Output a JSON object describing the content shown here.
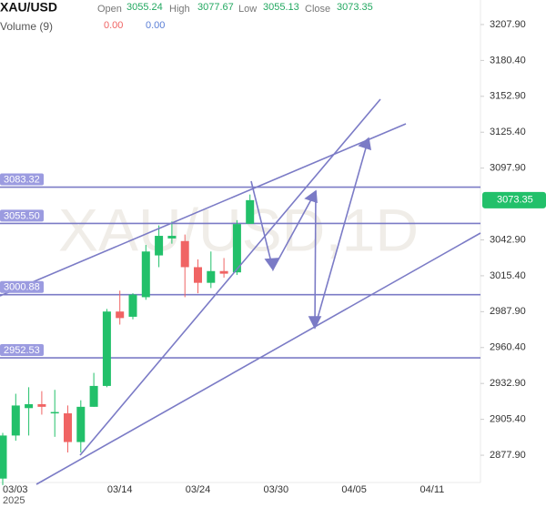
{
  "chart_data": {
    "type": "candlestick",
    "title": "XAU/USD",
    "watermark": "XAU/USD,1D",
    "header": {
      "open_label": "Open",
      "high_label": "High",
      "low_label": "Low",
      "close_label": "Close",
      "volume_label": "Volume (9)",
      "volume_values": [
        {
          "value": 0,
          "label": "0.00"
        },
        {
          "value": 0,
          "label": "0.00"
        }
      ]
    },
    "year_label": "2025",
    "categories": [
      "03/03",
      null,
      null,
      null,
      null,
      null,
      null,
      null,
      null,
      "03/14",
      null,
      null,
      null,
      null,
      null,
      "03/24",
      null,
      null,
      null,
      null,
      null,
      "03/30",
      null,
      null,
      null,
      null,
      null,
      "04/05",
      null,
      null,
      null,
      null,
      null,
      "04/11",
      null,
      null,
      null
    ],
    "open": [
      2860,
      2893,
      2914,
      2917,
      2910,
      2910,
      2888,
      2915,
      2931,
      2988,
      2984,
      2999,
      3031,
      3044,
      3042,
      3022,
      3010,
      3019,
      3018,
      3055.24,
      null,
      null,
      null,
      null,
      null,
      null,
      null,
      null,
      null,
      null,
      null,
      null,
      null,
      null,
      null,
      null,
      null
    ],
    "high": [
      2895,
      2925,
      2930,
      2927,
      2928,
      2916,
      2920,
      2941,
      2990,
      3004,
      3002,
      3039,
      3054,
      3057,
      3047,
      3028,
      3034,
      3029,
      3058,
      3077.67,
      null,
      null,
      null,
      null,
      null,
      null,
      null,
      null,
      null,
      null,
      null,
      null,
      null,
      null,
      null,
      null,
      null
    ],
    "low": [
      2855,
      2889,
      2893,
      2909,
      2892,
      2880,
      2880,
      2915,
      2930,
      2978,
      2982,
      2997,
      3022,
      3040,
      2999,
      3002,
      3006,
      3014,
      3016,
      3055.13,
      null,
      null,
      null,
      null,
      null,
      null,
      null,
      null,
      null,
      null,
      null,
      null,
      null,
      null,
      null,
      null,
      null
    ],
    "close": [
      2893,
      2916,
      2917,
      2915,
      2911,
      2888,
      2915,
      2931,
      2988,
      2983,
      3001,
      3034,
      3046,
      3046,
      3022,
      3010,
      3019,
      3017,
      3055,
      3073.35,
      null,
      null,
      null,
      null,
      null,
      null,
      null,
      null,
      null,
      null,
      null,
      null,
      null,
      null,
      null,
      null,
      null
    ],
    "up_color": "#22c06a",
    "down_color": "#f06464",
    "line_color": "#7b7bc6",
    "levels": [
      3083.32,
      {
        "value": 3055.5,
        "label": "3055.50"
      },
      3000.88,
      2952.53
    ],
    "ylim": [
      2857,
      3226.7
    ],
    "yticks": [
      {
        "value": 3207.9,
        "label": "3207.90"
      },
      {
        "value": 3180.4,
        "label": "3180.40"
      },
      {
        "value": 3152.9,
        "label": "3152.90"
      },
      {
        "value": 3125.4,
        "label": "3125.40"
      },
      {
        "value": 3097.9,
        "label": "3097.90"
      },
      {
        "value": 3042.9,
        "label": "3042.90"
      },
      {
        "value": 3015.4,
        "label": "3015.40"
      },
      {
        "value": 2987.9,
        "label": "2987.90"
      },
      {
        "value": 2960.4,
        "label": "2960.40"
      },
      {
        "value": 2932.9,
        "label": "2932.90"
      },
      {
        "value": 2905.4,
        "label": "2905.40"
      },
      {
        "value": 2877.9,
        "label": "2877.90"
      }
    ]
  }
}
